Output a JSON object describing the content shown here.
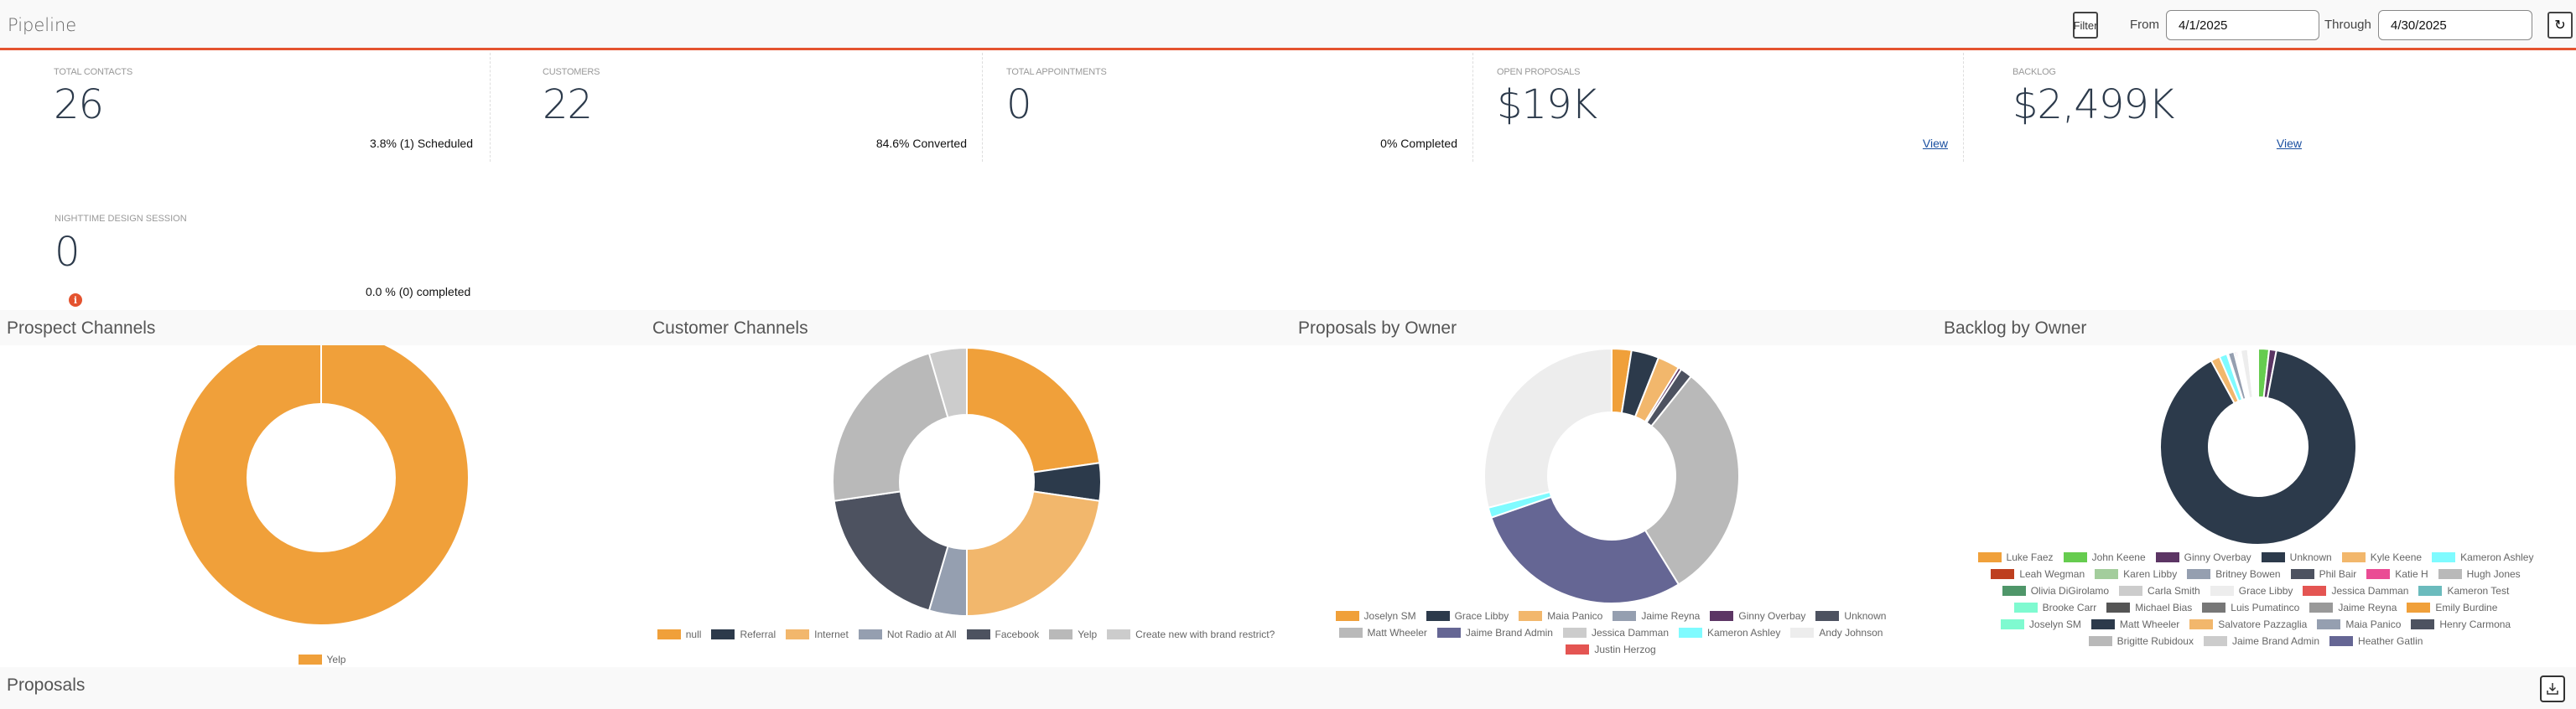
{
  "header": {
    "title": "Pipeline",
    "filter_label": "Filter",
    "from_label": "From",
    "from_value": "4/1/2025",
    "through_label": "Through",
    "through_value": "4/30/2025"
  },
  "kpis": [
    {
      "label": "TOTAL CONTACTS",
      "value": "26",
      "sub": "3.8% (1) Scheduled"
    },
    {
      "label": "CUSTOMERS",
      "value": "22",
      "sub": "84.6% Converted"
    },
    {
      "label": "TOTAL APPOINTMENTS",
      "value": "0",
      "sub": "0% Completed"
    },
    {
      "label": "OPEN PROPOSALS",
      "value": "$19K",
      "link": "View"
    },
    {
      "label": "BACKLOG",
      "value": "$2,499K",
      "link": "View"
    }
  ],
  "nighttime": {
    "label": "NIGHTTIME DESIGN SESSION",
    "value": "0",
    "sub": "0.0 % (0) completed"
  },
  "proposals_section": {
    "title": "Proposals"
  },
  "chart_data": [
    {
      "type": "pie",
      "title": "Prospect Channels",
      "donut": true,
      "labels": [
        "Yelp"
      ],
      "values": [
        1
      ],
      "colors": [
        "#f0a03a"
      ]
    },
    {
      "type": "pie",
      "title": "Customer Channels",
      "donut": true,
      "labels": [
        "null",
        "Referral",
        "Internet",
        "Not Radio at All",
        "Facebook",
        "Yelp",
        "Create new with brand restrict?"
      ],
      "values": [
        5,
        1,
        5,
        1,
        4,
        5,
        1
      ],
      "colors": [
        "#f0a03a",
        "#2c3a4b",
        "#f2b76c",
        "#959fb0",
        "#4d5260",
        "#b9b9b9",
        "#cccccc"
      ]
    },
    {
      "type": "pie",
      "title": "Proposals by Owner",
      "donut": true,
      "labels": [
        "Joselyn SM",
        "Grace Libby",
        "Maia Panico",
        "Jaime Reyna",
        "Ginny Overbay",
        "Unknown",
        "Matt Wheeler",
        "Jaime Brand Admin",
        "Jessica Damman",
        "Kameron Ashley",
        "Andy Johnson",
        "Justin Herzog"
      ],
      "values": [
        2.5,
        3.5,
        2.8,
        0,
        0.4,
        1.5,
        30.5,
        28.5,
        0,
        1.3,
        29,
        0
      ],
      "colors": [
        "#f0a03a",
        "#2c3a4b",
        "#f2b76c",
        "#959fb0",
        "#5c3564",
        "#4d5260",
        "#b9b9b9",
        "#656694",
        "#cccccc",
        "#7ffbff",
        "#ededed",
        "#e45552"
      ]
    },
    {
      "type": "pie",
      "title": "Backlog by Owner",
      "donut": true,
      "labels": [
        "Luke Faez",
        "John Keene",
        "Ginny Overbay",
        "Unknown",
        "Kyle Keene",
        "Kameron Ashley",
        "Leah Wegman",
        "Karen Libby",
        "Britney Bowen",
        "Phil Bair",
        "Katie H",
        "Hugh Jones",
        "Olivia DiGirolamo",
        "Carla Smith",
        "Grace Libby",
        "Jessica Damman",
        "Kameron Test",
        "Brooke Carr",
        "Michael Bias",
        "Luis Pumatinco",
        "Jaime Reyna",
        "Emily Burdine",
        "Joselyn SM",
        "Matt Wheeler",
        "Salvatore Pazzaglia",
        "Maia Panico",
        "Henry Carmona",
        "Brigitte Rubidoux",
        "Jaime Brand Admin",
        "Heather Gatlin"
      ],
      "values": [
        0,
        1.8,
        1.2,
        89.5,
        1.5,
        1.3,
        0.1,
        0.1,
        1.0,
        0.3,
        0.3,
        0.2,
        0.1,
        0.2,
        1.2,
        0.1,
        0.1,
        0.1,
        0.2,
        0.1,
        0.1,
        0.1,
        0.1,
        0.2,
        0.1,
        0.1,
        0.1,
        0.1,
        0.1,
        0.1
      ],
      "colors": [
        "#f0a03a",
        "#66cc4f",
        "#5c3564",
        "#2c3a4b",
        "#f2b76c",
        "#7ffbff",
        "#be3f1f",
        "#a3cd9c",
        "#959fb0",
        "#4d5260",
        "#ea4c94",
        "#b9b9b9",
        "#4f9669",
        "#cccccc",
        "#ededed",
        "#e45552",
        "#6bbbbd",
        "#7ffad0",
        "#555555",
        "#777777",
        "#999999",
        "#f0a03a",
        "#7ffad0",
        "#2c3a4b",
        "#f2b76c",
        "#959fb0",
        "#4d5260",
        "#b9b9b9",
        "#cccccc",
        "#656694"
      ]
    }
  ]
}
